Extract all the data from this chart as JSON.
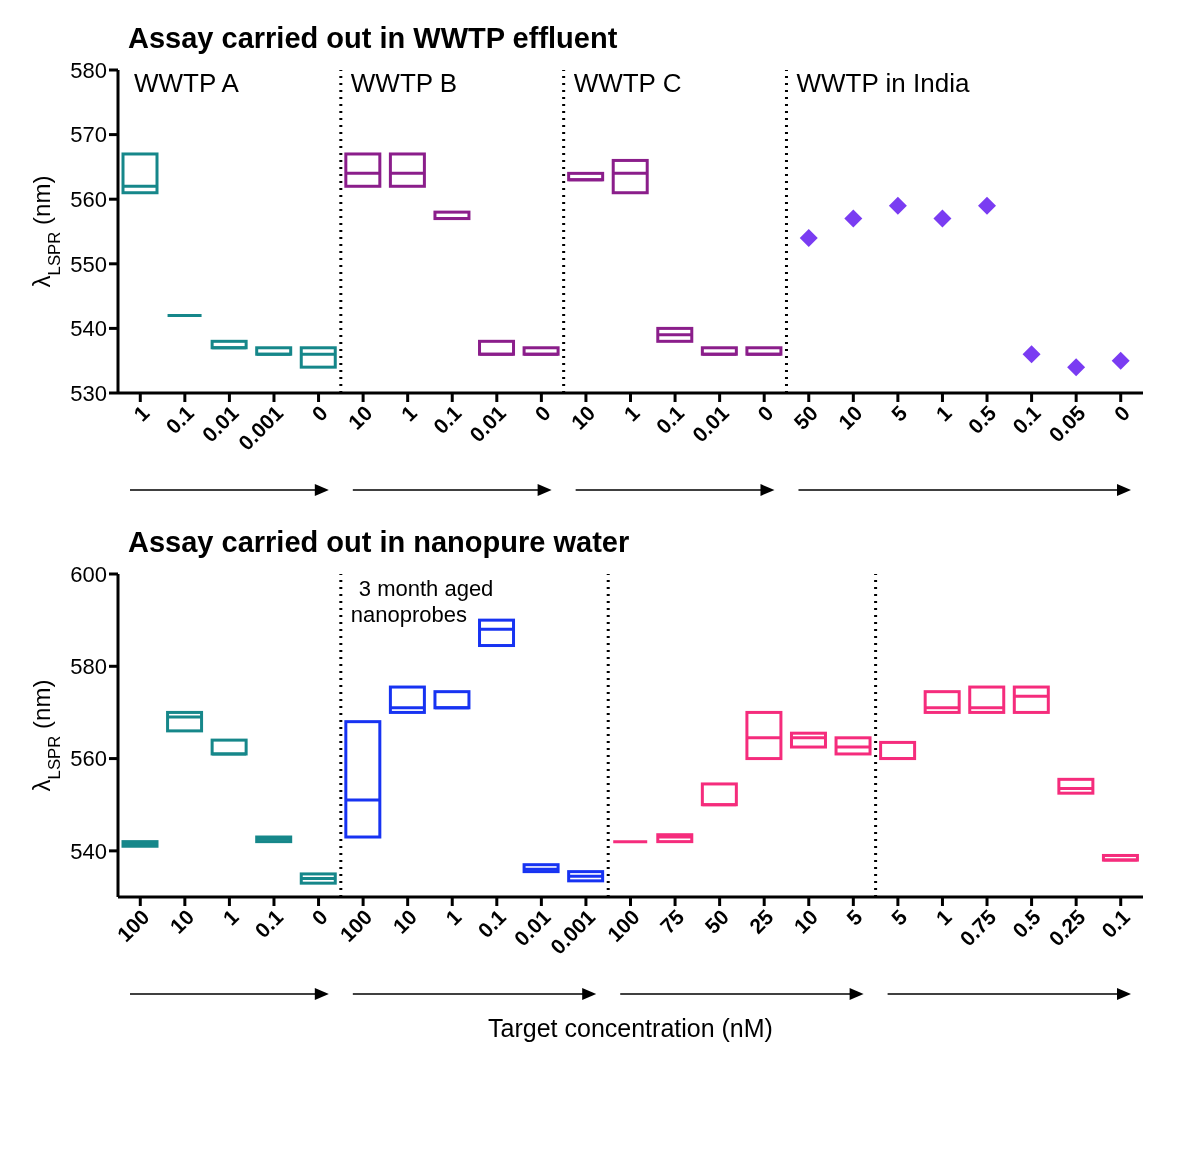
{
  "chart_data": [
    {
      "type": "box",
      "title": "Assay carried out in WWTP effluent",
      "ylabel": "λ$_{LSPR}$ (nm)",
      "annotations": [
        "WWTP in India"
      ],
      "categories": [
        "1",
        "0.1",
        "0.01",
        "0.001",
        "0",
        "10",
        "1",
        "0.1",
        "0.01",
        "0",
        "10",
        "1",
        "0.1",
        "0.01",
        "0",
        "50",
        "10",
        "5",
        "1",
        "0.5",
        "0.1",
        "0.05",
        "0"
      ],
      "ylim": [
        530,
        580
      ],
      "yticks": [
        530,
        540,
        550,
        560,
        570,
        580
      ],
      "series": [
        {
          "name": "WWTP A",
          "color": "#16878a",
          "boxes": [
            {
              "low": 561,
              "q1": 561,
              "median": 562,
              "q3": 567,
              "high": 567
            },
            {
              "low": 542,
              "q1": 542,
              "median": 542,
              "q3": 542,
              "high": 542
            },
            {
              "low": 537,
              "q1": 537,
              "median": 537,
              "q3": 538,
              "high": 538
            },
            {
              "low": 536,
              "q1": 536,
              "median": 536,
              "q3": 537,
              "high": 537
            },
            {
              "low": 534,
              "q1": 534,
              "median": 536,
              "q3": 537,
              "high": 537
            },
            null,
            null,
            null,
            null,
            null,
            null,
            null,
            null,
            null,
            null,
            null,
            null,
            null,
            null,
            null,
            null,
            null,
            null
          ]
        },
        {
          "name": "WWTP B",
          "color": "#8b1e8b",
          "boxes": [
            null,
            null,
            null,
            null,
            null,
            {
              "low": 562,
              "q1": 562,
              "median": 564,
              "q3": 567,
              "high": 567
            },
            {
              "low": 562,
              "q1": 562,
              "median": 564,
              "q3": 567,
              "high": 567
            },
            {
              "low": 557,
              "q1": 557,
              "median": 557,
              "q3": 558,
              "high": 558
            },
            {
              "low": 536,
              "q1": 536,
              "median": 536,
              "q3": 538,
              "high": 538
            },
            {
              "low": 536,
              "q1": 536,
              "median": 536,
              "q3": 537,
              "high": 537
            },
            null,
            null,
            null,
            null,
            null,
            null,
            null,
            null,
            null,
            null,
            null,
            null,
            null
          ]
        },
        {
          "name": "WWTP C",
          "color": "#8b1e8b",
          "boxes": [
            null,
            null,
            null,
            null,
            null,
            null,
            null,
            null,
            null,
            null,
            {
              "low": 563,
              "q1": 563,
              "median": 563,
              "q3": 564,
              "high": 564
            },
            {
              "low": 561,
              "q1": 561,
              "median": 564,
              "q3": 566,
              "high": 566
            },
            {
              "low": 538,
              "q1": 538,
              "median": 539,
              "q3": 540,
              "high": 540
            },
            {
              "low": 536,
              "q1": 536,
              "median": 536,
              "q3": 537,
              "high": 537
            },
            {
              "low": 536,
              "q1": 536,
              "median": 536,
              "q3": 537,
              "high": 537
            },
            null,
            null,
            null,
            null,
            null,
            null,
            null,
            null
          ]
        },
        {
          "type": "scatter",
          "marker": "diamond",
          "color": "#7a3cf2",
          "values": [
            null,
            null,
            null,
            null,
            null,
            null,
            null,
            null,
            null,
            null,
            null,
            null,
            null,
            null,
            null,
            554,
            557,
            559,
            557,
            559,
            536,
            534,
            535
          ]
        }
      ]
    },
    {
      "type": "box",
      "title": "Assay carried out in nanopure water",
      "ylabel": "λ$_{LSPR}$ (nm)",
      "xlabel": "Target concentration (nM)",
      "categories": [
        "100",
        "10",
        "1",
        "0.1",
        "0",
        "100",
        "10",
        "1",
        "0.1",
        "0.01",
        "0.001",
        "100",
        "75",
        "50",
        "25",
        "10",
        "5",
        "5",
        "1",
        "0.75",
        "0.5",
        "0.25",
        "0.1"
      ],
      "ylim": [
        530,
        600
      ],
      "yticks": [
        540,
        560,
        580,
        600
      ],
      "series": [
        {
          "color": "#16878a",
          "boxes": [
            {
              "low": 541,
              "q1": 541,
              "median": 541.5,
              "q3": 542,
              "high": 542
            },
            {
              "low": 566,
              "q1": 566,
              "median": 569,
              "q3": 570,
              "high": 570
            },
            {
              "low": 561,
              "q1": 561,
              "median": 561,
              "q3": 564,
              "high": 564
            },
            {
              "low": 542,
              "q1": 542,
              "median": 542.5,
              "q3": 543,
              "high": 543
            },
            {
              "low": 533,
              "q1": 533,
              "median": 534,
              "q3": 535,
              "high": 535
            },
            null,
            null,
            null,
            null,
            null,
            null,
            null,
            null,
            null,
            null,
            null,
            null,
            null,
            null,
            null,
            null,
            null,
            null
          ]
        },
        {
          "name": "3 month aged nanoprobes",
          "color": "#1733f2",
          "boxes": [
            null,
            null,
            null,
            null,
            null,
            {
              "low": 543,
              "q1": 543,
              "median": 551,
              "q3": 568,
              "high": 568
            },
            {
              "low": 570,
              "q1": 570,
              "median": 571,
              "q3": 575.5,
              "high": 575.5
            },
            {
              "low": 571,
              "q1": 571,
              "median": 571,
              "q3": 574.5,
              "high": 574.5
            },
            {
              "low": 584.5,
              "q1": 584.5,
              "median": 588,
              "q3": 590,
              "high": 590
            },
            {
              "low": 535.5,
              "q1": 535.5,
              "median": 536,
              "q3": 537,
              "high": 537
            },
            {
              "low": 533.5,
              "q1": 533.5,
              "median": 534.5,
              "q3": 535.5,
              "high": 535.5
            },
            null,
            null,
            null,
            null,
            null,
            null,
            null,
            null,
            null,
            null,
            null,
            null
          ]
        },
        {
          "color": "#f52c7c",
          "boxes": [
            null,
            null,
            null,
            null,
            null,
            null,
            null,
            null,
            null,
            null,
            null,
            {
              "low": 542,
              "q1": 542,
              "median": 542,
              "q3": 542,
              "high": 542
            },
            {
              "low": 542,
              "q1": 542,
              "median": 543,
              "q3": 543.5,
              "high": 543.5
            },
            {
              "low": 550,
              "q1": 550,
              "median": 550,
              "q3": 554.5,
              "high": 554.5
            },
            {
              "low": 560,
              "q1": 560,
              "median": 564.5,
              "q3": 570,
              "high": 570
            },
            {
              "low": 562.5,
              "q1": 562.5,
              "median": 564.5,
              "q3": 565.5,
              "high": 565.5
            },
            {
              "low": 561,
              "q1": 561,
              "median": 562.5,
              "q3": 564.5,
              "high": 564.5
            },
            null,
            null,
            null,
            null,
            null,
            null
          ]
        },
        {
          "color": "#f52c7c",
          "boxes": [
            null,
            null,
            null,
            null,
            null,
            null,
            null,
            null,
            null,
            null,
            null,
            null,
            null,
            null,
            null,
            null,
            null,
            {
              "low": 560,
              "q1": 560,
              "median": 560,
              "q3": 563.5,
              "high": 563.5
            },
            {
              "low": 570,
              "q1": 570,
              "median": 571,
              "q3": 574.5,
              "high": 574.5
            },
            {
              "low": 570,
              "q1": 570,
              "median": 571,
              "q3": 575.5,
              "high": 575.5
            },
            {
              "low": 570,
              "q1": 570,
              "median": 573.5,
              "q3": 575.5,
              "high": 575.5
            },
            {
              "low": 552.5,
              "q1": 552.5,
              "median": 553.5,
              "q3": 555.5,
              "high": 555.5
            },
            {
              "low": 538,
              "q1": 538,
              "median": 538,
              "q3": 539,
              "high": 539
            }
          ]
        }
      ]
    }
  ]
}
